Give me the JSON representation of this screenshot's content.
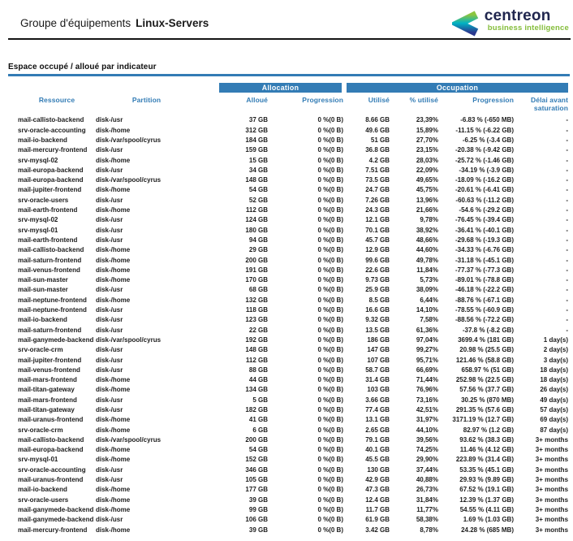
{
  "header": {
    "title_prefix": "Groupe d'équipements",
    "title_group": "Linux-Servers"
  },
  "logo": {
    "brand": "centreon",
    "tagline": "business intelligence",
    "brand_color": "#20264e",
    "tagline_color": "#84bd3a",
    "mark_green": "#8dc63f",
    "mark_teal": "#00b2c4",
    "mark_blue": "#2b3990"
  },
  "section": {
    "title": "Espace occupé / alloué par indicateur"
  },
  "table": {
    "accent_blue": "#337cb5",
    "group_headers": {
      "allocation": "Allocation",
      "occupation": "Occupation"
    },
    "columns": [
      "Ressource",
      "Partition",
      "Alloué",
      "Progression",
      "Utilisé",
      "% utilisé",
      "Progression",
      "Délai avant saturation"
    ],
    "rows": [
      [
        "mail-callisto-backend",
        "disk-/usr",
        "37 GB",
        "0 %(0 B)",
        "8.66 GB",
        "23,39%",
        "-6.83 % (-650 MB)",
        "-"
      ],
      [
        "srv-oracle-accounting",
        "disk-/home",
        "312 GB",
        "0 %(0 B)",
        "49.6 GB",
        "15,89%",
        "-11.15 % (-6.22 GB)",
        "-"
      ],
      [
        "mail-io-backend",
        "disk-/var/spool/cyrus",
        "184 GB",
        "0 %(0 B)",
        "51 GB",
        "27,70%",
        "-6.25 % (-3.4 GB)",
        "-"
      ],
      [
        "mail-mercury-frontend",
        "disk-/usr",
        "159 GB",
        "0 %(0 B)",
        "36.8 GB",
        "23,15%",
        "-20.38 % (-9.42 GB)",
        "-"
      ],
      [
        "srv-mysql-02",
        "disk-/home",
        "15 GB",
        "0 %(0 B)",
        "4.2 GB",
        "28,03%",
        "-25.72 % (-1.46 GB)",
        "-"
      ],
      [
        "mail-europa-backend",
        "disk-/usr",
        "34 GB",
        "0 %(0 B)",
        "7.51 GB",
        "22,09%",
        "-34.19 % (-3.9 GB)",
        "-"
      ],
      [
        "mail-europa-backend",
        "disk-/var/spool/cyrus",
        "148 GB",
        "0 %(0 B)",
        "73.5 GB",
        "49,65%",
        "-18.09 % (-16.2 GB)",
        "-"
      ],
      [
        "mail-jupiter-frontend",
        "disk-/home",
        "54 GB",
        "0 %(0 B)",
        "24.7 GB",
        "45,75%",
        "-20.61 % (-6.41 GB)",
        "-"
      ],
      [
        "srv-oracle-users",
        "disk-/usr",
        "52 GB",
        "0 %(0 B)",
        "7.26 GB",
        "13,96%",
        "-60.63 % (-11.2 GB)",
        "-"
      ],
      [
        "mail-earth-frontend",
        "disk-/home",
        "112 GB",
        "0 %(0 B)",
        "24.3 GB",
        "21,66%",
        "-54.6 % (-29.2 GB)",
        "-"
      ],
      [
        "srv-mysql-02",
        "disk-/usr",
        "124 GB",
        "0 %(0 B)",
        "12.1 GB",
        "9,78%",
        "-76.45 % (-39.4 GB)",
        "-"
      ],
      [
        "srv-mysql-01",
        "disk-/usr",
        "180 GB",
        "0 %(0 B)",
        "70.1 GB",
        "38,92%",
        "-36.41 % (-40.1 GB)",
        "-"
      ],
      [
        "mail-earth-frontend",
        "disk-/usr",
        "94 GB",
        "0 %(0 B)",
        "45.7 GB",
        "48,66%",
        "-29.68 % (-19.3 GB)",
        "-"
      ],
      [
        "mail-callisto-backend",
        "disk-/home",
        "29 GB",
        "0 %(0 B)",
        "12.9 GB",
        "44,60%",
        "-34.33 % (-6.76 GB)",
        "-"
      ],
      [
        "mail-saturn-frontend",
        "disk-/home",
        "200 GB",
        "0 %(0 B)",
        "99.6 GB",
        "49,78%",
        "-31.18 % (-45.1 GB)",
        "-"
      ],
      [
        "mail-venus-frontend",
        "disk-/home",
        "191 GB",
        "0 %(0 B)",
        "22.6 GB",
        "11,84%",
        "-77.37 % (-77.3 GB)",
        "-"
      ],
      [
        "mail-sun-master",
        "disk-/home",
        "170 GB",
        "0 %(0 B)",
        "9.73 GB",
        "5,73%",
        "-89.01 % (-78.8 GB)",
        "-"
      ],
      [
        "mail-sun-master",
        "disk-/usr",
        "68 GB",
        "0 %(0 B)",
        "25.9 GB",
        "38,09%",
        "-46.18 % (-22.2 GB)",
        "-"
      ],
      [
        "mail-neptune-frontend",
        "disk-/home",
        "132 GB",
        "0 %(0 B)",
        "8.5 GB",
        "6,44%",
        "-88.76 % (-67.1 GB)",
        "-"
      ],
      [
        "mail-neptune-frontend",
        "disk-/usr",
        "118 GB",
        "0 %(0 B)",
        "16.6 GB",
        "14,10%",
        "-78.55 % (-60.9 GB)",
        "-"
      ],
      [
        "mail-io-backend",
        "disk-/usr",
        "123 GB",
        "0 %(0 B)",
        "9.32 GB",
        "7,58%",
        "-88.56 % (-72.2 GB)",
        "-"
      ],
      [
        "mail-saturn-frontend",
        "disk-/usr",
        "22 GB",
        "0 %(0 B)",
        "13.5 GB",
        "61,36%",
        "-37.8 % (-8.2 GB)",
        "-"
      ],
      [
        "mail-ganymede-backend",
        "disk-/var/spool/cyrus",
        "192 GB",
        "0 %(0 B)",
        "186 GB",
        "97,04%",
        "3699.4 % (181 GB)",
        "1 day(s)"
      ],
      [
        "srv-oracle-crm",
        "disk-/usr",
        "148 GB",
        "0 %(0 B)",
        "147 GB",
        "99,27%",
        "20.98 % (25.5 GB)",
        "2 day(s)"
      ],
      [
        "mail-jupiter-frontend",
        "disk-/usr",
        "112 GB",
        "0 %(0 B)",
        "107 GB",
        "95,71%",
        "121.46 % (58.8 GB)",
        "3 day(s)"
      ],
      [
        "mail-venus-frontend",
        "disk-/usr",
        "88 GB",
        "0 %(0 B)",
        "58.7 GB",
        "66,69%",
        "658.97 % (51 GB)",
        "18 day(s)"
      ],
      [
        "mail-mars-frontend",
        "disk-/home",
        "44 GB",
        "0 %(0 B)",
        "31.4 GB",
        "71,44%",
        "252.98 % (22.5 GB)",
        "18 day(s)"
      ],
      [
        "mail-titan-gateway",
        "disk-/home",
        "134 GB",
        "0 %(0 B)",
        "103 GB",
        "76,96%",
        "57.56 % (37.7 GB)",
        "26 day(s)"
      ],
      [
        "mail-mars-frontend",
        "disk-/usr",
        "5 GB",
        "0 %(0 B)",
        "3.66 GB",
        "73,16%",
        "30.25 % (870 MB)",
        "49 day(s)"
      ],
      [
        "mail-titan-gateway",
        "disk-/usr",
        "182 GB",
        "0 %(0 B)",
        "77.4 GB",
        "42,51%",
        "291.35 % (57.6 GB)",
        "57 day(s)"
      ],
      [
        "mail-uranus-frontend",
        "disk-/home",
        "41 GB",
        "0 %(0 B)",
        "13.1 GB",
        "31,97%",
        "3171.19 % (12.7 GB)",
        "69 day(s)"
      ],
      [
        "srv-oracle-crm",
        "disk-/home",
        "6 GB",
        "0 %(0 B)",
        "2.65 GB",
        "44,10%",
        "82.97 % (1.2 GB)",
        "87 day(s)"
      ],
      [
        "mail-callisto-backend",
        "disk-/var/spool/cyrus",
        "200 GB",
        "0 %(0 B)",
        "79.1 GB",
        "39,56%",
        "93.62 % (38.3 GB)",
        "3+ months"
      ],
      [
        "mail-europa-backend",
        "disk-/home",
        "54 GB",
        "0 %(0 B)",
        "40.1 GB",
        "74,25%",
        "11.46 % (4.12 GB)",
        "3+ months"
      ],
      [
        "srv-mysql-01",
        "disk-/home",
        "152 GB",
        "0 %(0 B)",
        "45.5 GB",
        "29,90%",
        "223.89 % (31.4 GB)",
        "3+ months"
      ],
      [
        "srv-oracle-accounting",
        "disk-/usr",
        "346 GB",
        "0 %(0 B)",
        "130 GB",
        "37,44%",
        "53.35 % (45.1 GB)",
        "3+ months"
      ],
      [
        "mail-uranus-frontend",
        "disk-/usr",
        "105 GB",
        "0 %(0 B)",
        "42.9 GB",
        "40,88%",
        "29.93 % (9.89 GB)",
        "3+ months"
      ],
      [
        "mail-io-backend",
        "disk-/home",
        "177 GB",
        "0 %(0 B)",
        "47.3 GB",
        "26,73%",
        "67.52 % (19.1 GB)",
        "3+ months"
      ],
      [
        "srv-oracle-users",
        "disk-/home",
        "39 GB",
        "0 %(0 B)",
        "12.4 GB",
        "31,84%",
        "12.39 % (1.37 GB)",
        "3+ months"
      ],
      [
        "mail-ganymede-backend",
        "disk-/home",
        "99 GB",
        "0 %(0 B)",
        "11.7 GB",
        "11,77%",
        "54.55 % (4.11 GB)",
        "3+ months"
      ],
      [
        "mail-ganymede-backend",
        "disk-/usr",
        "106 GB",
        "0 %(0 B)",
        "61.9 GB",
        "58,38%",
        "1.69 % (1.03 GB)",
        "3+ months"
      ],
      [
        "mail-mercury-frontend",
        "disk-/home",
        "39 GB",
        "0 %(0 B)",
        "3.42 GB",
        "8,78%",
        "24.28 % (685 MB)",
        "3+ months"
      ]
    ]
  }
}
